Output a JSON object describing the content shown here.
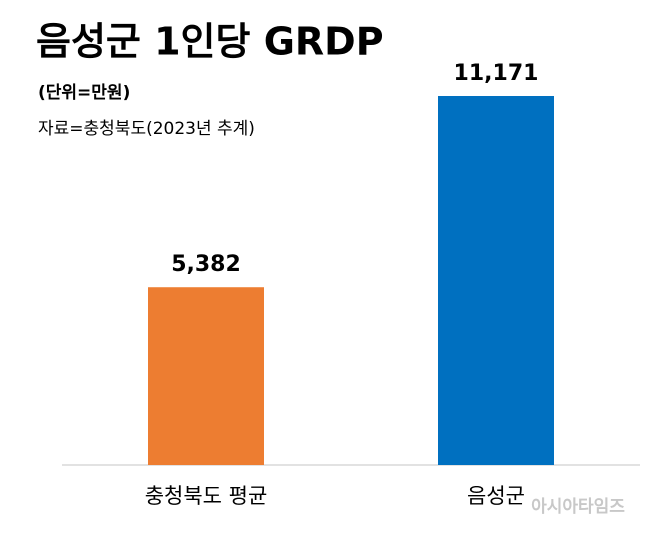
{
  "chart_data": {
    "type": "bar",
    "title": "음성군 1인당 GRDP",
    "subtitle": "(단위=만원)",
    "source": "자료=충청북도(2023년 추계)",
    "categories": [
      "충청북도 평균",
      "음성군"
    ],
    "values": [
      5382,
      11171
    ],
    "value_labels": [
      "5,382",
      "11,171"
    ],
    "colors": [
      "#ed7d31",
      "#0070c0"
    ],
    "watermark": "아시아타임즈"
  }
}
